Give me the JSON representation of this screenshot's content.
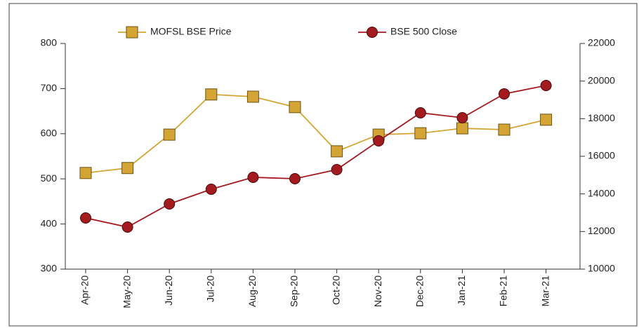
{
  "chart_data": {
    "type": "line",
    "categories": [
      "Apr-20",
      "May-20",
      "Jun-20",
      "Jul-20",
      "Aug-20",
      "Sep-20",
      "Oct-20",
      "Nov-20",
      "Dec-20",
      "Jan-21",
      "Feb-21",
      "Mar-21"
    ],
    "series": [
      {
        "name": "MOFSL BSE Price",
        "color": "#d4a534",
        "marker": "square",
        "values": [
          513,
          524,
          598,
          687,
          682,
          659,
          561,
          598,
          601,
          612,
          609,
          631
        ]
      },
      {
        "name": "BSE 500 Close",
        "color": "#a31a1f",
        "marker": "circle",
        "axis": "y2",
        "values": [
          12720,
          12236,
          13466,
          14249,
          14883,
          14808,
          15292,
          16820,
          18311,
          18050,
          19318,
          19765
        ]
      }
    ],
    "ylim": [
      300,
      800
    ],
    "yticks": [
      300,
      400,
      500,
      600,
      700,
      800
    ],
    "y2lim": [
      10000,
      22000
    ],
    "y2ticks": [
      10000,
      12000,
      14000,
      16000,
      18000,
      20000,
      22000
    ],
    "legend": "top"
  }
}
